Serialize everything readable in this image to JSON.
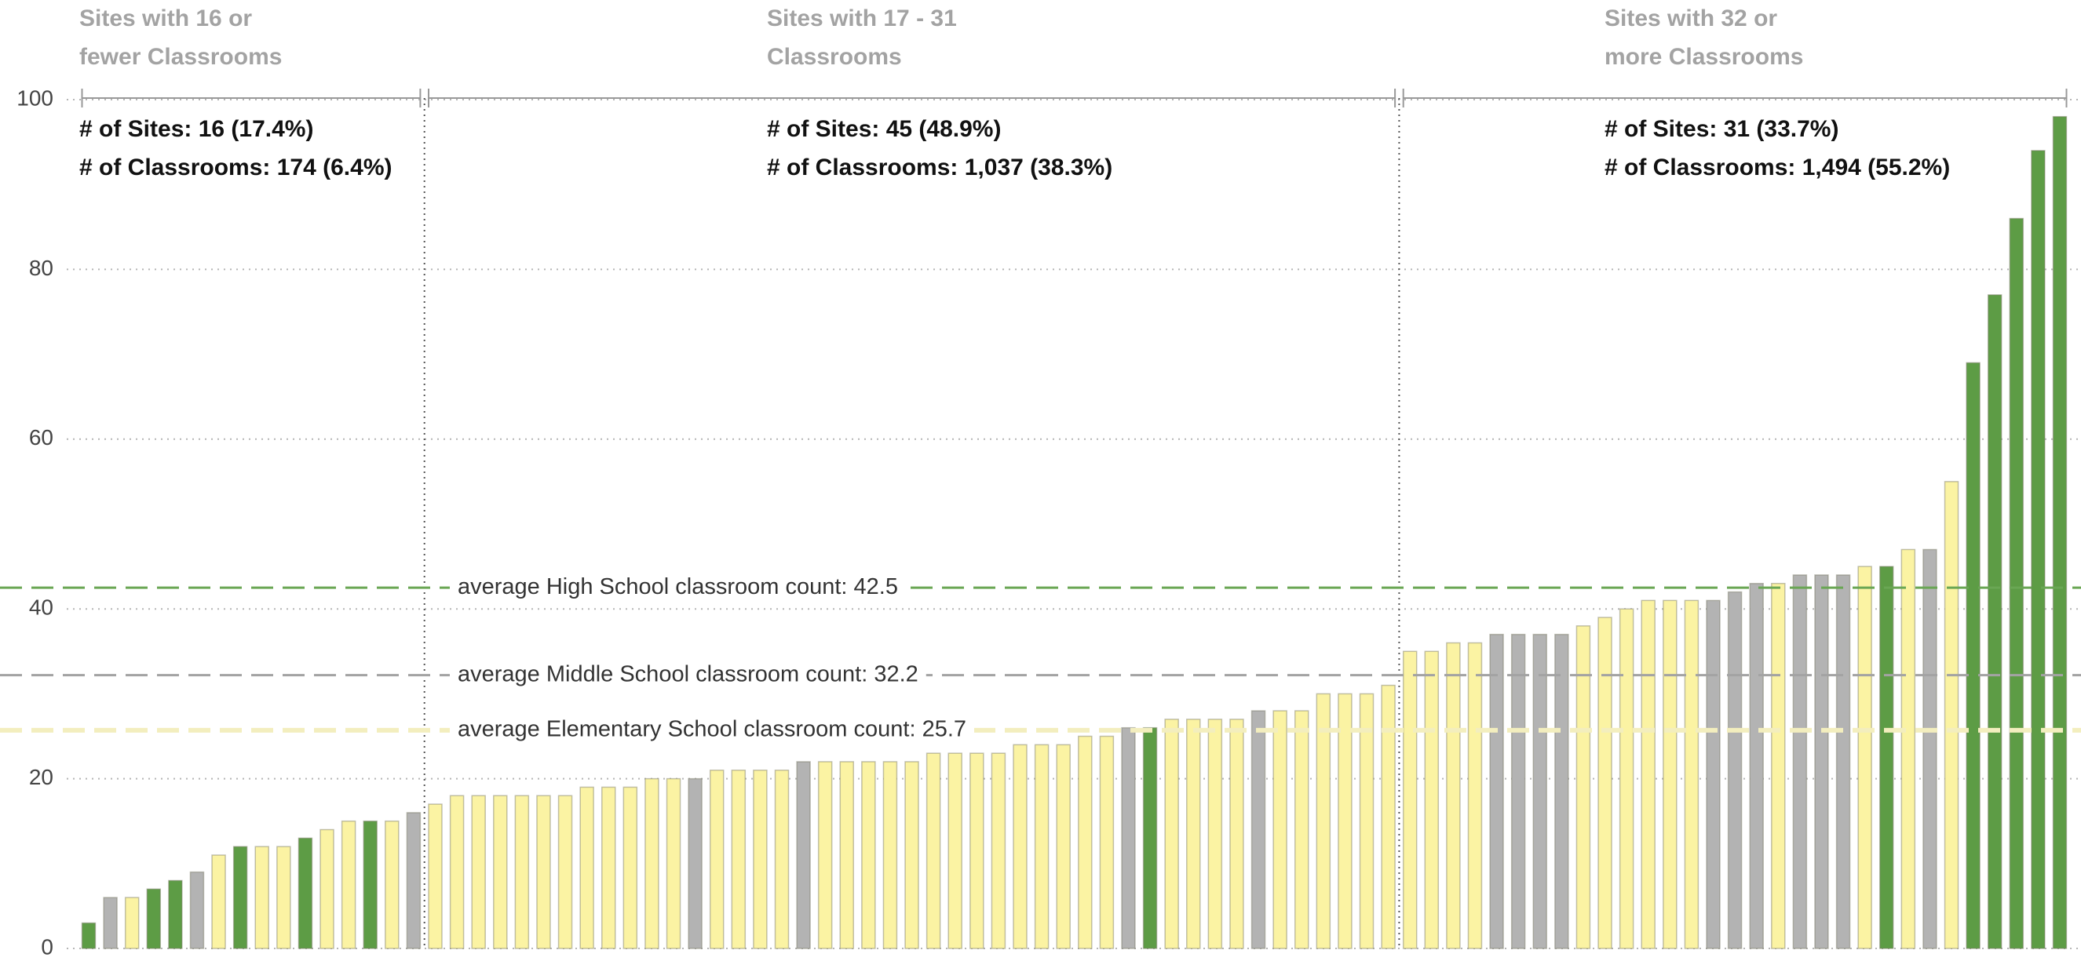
{
  "chart_data": {
    "type": "bar",
    "categories": [
      null,
      null,
      null,
      null,
      null,
      null,
      null,
      null,
      null,
      null,
      null,
      null,
      null,
      null,
      null,
      null,
      null,
      null,
      null,
      null,
      null,
      null,
      null,
      null,
      null,
      null,
      null,
      null,
      null,
      null,
      null,
      null,
      null,
      null,
      null,
      null,
      null,
      null,
      null,
      null,
      null,
      null,
      null,
      null,
      null,
      null,
      null,
      null,
      null,
      null,
      null,
      null,
      null,
      null,
      null,
      null,
      null,
      null,
      null,
      null,
      null,
      null,
      null,
      null,
      null,
      null,
      null,
      null,
      null,
      null,
      null,
      null,
      null,
      null,
      null,
      null,
      null,
      null,
      null,
      null,
      null,
      null,
      null,
      null,
      null,
      null,
      null,
      null,
      null,
      null,
      null,
      null
    ],
    "values": [
      3,
      6,
      6,
      7,
      8,
      9,
      11,
      12,
      12,
      12,
      13,
      14,
      15,
      15,
      15,
      16,
      17,
      18,
      18,
      18,
      18,
      18,
      18,
      19,
      19,
      19,
      20,
      20,
      20,
      21,
      21,
      21,
      21,
      22,
      22,
      22,
      22,
      22,
      22,
      23,
      23,
      23,
      23,
      24,
      24,
      24,
      25,
      25,
      26,
      26,
      27,
      27,
      27,
      27,
      28,
      28,
      28,
      30,
      30,
      30,
      31,
      35,
      35,
      36,
      36,
      37,
      37,
      37,
      37,
      38,
      39,
      40,
      41,
      41,
      41,
      41,
      42,
      43,
      43,
      44,
      44,
      44,
      45,
      45,
      47,
      47,
      55,
      69,
      77,
      86,
      94,
      98
    ],
    "colors": [
      "#5d9c45",
      "#b3b3b3",
      "#fbf3a3",
      "#5d9c45",
      "#5d9c45",
      "#b3b3b3",
      "#fbf3a3",
      "#5d9c45",
      "#fbf3a3",
      "#fbf3a3",
      "#5d9c45",
      "#fbf3a3",
      "#fbf3a3",
      "#5d9c45",
      "#fbf3a3",
      "#b3b3b3",
      "#fbf3a3",
      "#fbf3a3",
      "#fbf3a3",
      "#fbf3a3",
      "#fbf3a3",
      "#fbf3a3",
      "#fbf3a3",
      "#fbf3a3",
      "#fbf3a3",
      "#fbf3a3",
      "#fbf3a3",
      "#fbf3a3",
      "#b3b3b3",
      "#fbf3a3",
      "#fbf3a3",
      "#fbf3a3",
      "#fbf3a3",
      "#b3b3b3",
      "#fbf3a3",
      "#fbf3a3",
      "#fbf3a3",
      "#fbf3a3",
      "#fbf3a3",
      "#fbf3a3",
      "#fbf3a3",
      "#fbf3a3",
      "#fbf3a3",
      "#fbf3a3",
      "#fbf3a3",
      "#fbf3a3",
      "#fbf3a3",
      "#fbf3a3",
      "#b3b3b3",
      "#5d9c45",
      "#fbf3a3",
      "#fbf3a3",
      "#fbf3a3",
      "#fbf3a3",
      "#b3b3b3",
      "#fbf3a3",
      "#fbf3a3",
      "#fbf3a3",
      "#fbf3a3",
      "#fbf3a3",
      "#fbf3a3",
      "#fbf3a3",
      "#fbf3a3",
      "#fbf3a3",
      "#fbf3a3",
      "#b3b3b3",
      "#b3b3b3",
      "#b3b3b3",
      "#b3b3b3",
      "#fbf3a3",
      "#fbf3a3",
      "#fbf3a3",
      "#fbf3a3",
      "#fbf3a3",
      "#fbf3a3",
      "#b3b3b3",
      "#b3b3b3",
      "#b3b3b3",
      "#fbf3a3",
      "#b3b3b3",
      "#b3b3b3",
      "#b3b3b3",
      "#fbf3a3",
      "#5d9c45",
      "#fbf3a3",
      "#b3b3b3",
      "#fbf3a3",
      "#5d9c45",
      "#5d9c45",
      "#5d9c45",
      "#5d9c45",
      "#5d9c45"
    ],
    "ylim": [
      0,
      100
    ],
    "yticks": [
      0,
      20,
      40,
      60,
      80,
      100
    ],
    "grid": true,
    "groups": [
      {
        "title": [
          "Sites with 16 or",
          "fewer Classrooms"
        ],
        "stats": [
          "# of Sites: 16 (17.4%)",
          "# of Classrooms: 174 (6.4%)"
        ]
      },
      {
        "title": [
          "Sites with 17 - 31",
          "Classrooms"
        ],
        "stats": [
          "# of Sites: 45 (48.9%)",
          "# of Classrooms: 1,037 (38.3%)"
        ]
      },
      {
        "title": [
          "Sites with 32 or",
          "more Classrooms"
        ],
        "stats": [
          "# of Sites: 31 (33.7%)",
          "# of Classrooms: 1,494 (55.2%)"
        ]
      }
    ],
    "reference_lines": [
      {
        "value": 42.5,
        "label": "average High School classroom count: 42.5",
        "color": "#6aa654"
      },
      {
        "value": 32.2,
        "label": "average Middle School classroom count: 32.2",
        "color": "#a3a3a3"
      },
      {
        "value": 25.7,
        "label": "average Elementary School classroom count: 25.7",
        "color": "#f3eebe"
      }
    ]
  }
}
